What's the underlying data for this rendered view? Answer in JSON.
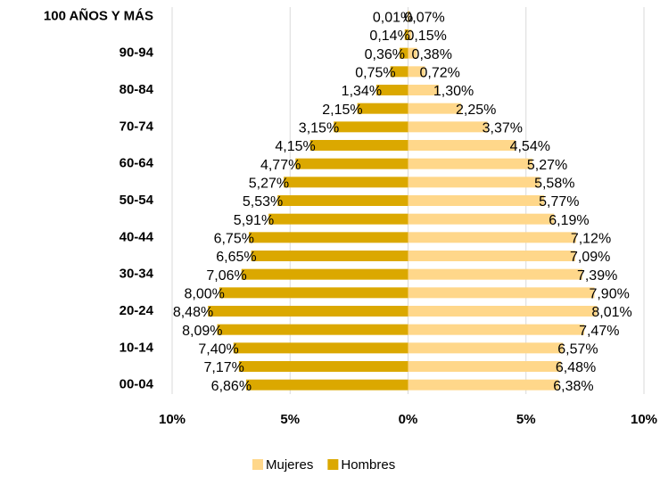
{
  "chart_data": {
    "type": "pyramid",
    "categories": [
      "00-04",
      null,
      "10-14",
      null,
      "20-24",
      null,
      "30-34",
      null,
      "40-44",
      null,
      "50-54",
      null,
      "60-64",
      null,
      "70-74",
      null,
      "80-84",
      null,
      "90-94",
      null,
      "100 AÑOS Y MÁS"
    ],
    "series": [
      {
        "name": "Mujeres",
        "color": "#ffd78a",
        "values": [
          6.38,
          6.48,
          6.57,
          7.47,
          8.01,
          7.9,
          7.39,
          7.09,
          7.12,
          6.19,
          5.77,
          5.58,
          5.27,
          4.54,
          3.37,
          2.25,
          1.3,
          0.72,
          0.38,
          0.15,
          0.07
        ],
        "value_labels": [
          "6,38%",
          "6,48%",
          "6,57%",
          "7,47%",
          "8,01%",
          "7,90%",
          "7,39%",
          "7,09%",
          "7,12%",
          "6,19%",
          "5,77%",
          "5,58%",
          "5,27%",
          "4,54%",
          "3,37%",
          "2,25%",
          "1,30%",
          "0,72%",
          "0,38%",
          "0,15%",
          "0,07%"
        ]
      },
      {
        "name": "Hombres",
        "color": "#dba800",
        "values": [
          -6.86,
          -7.17,
          -7.4,
          -8.09,
          -8.48,
          -8.0,
          -7.06,
          -6.65,
          -6.75,
          -5.91,
          -5.53,
          -5.27,
          -4.77,
          -4.15,
          -3.15,
          -2.15,
          -1.34,
          -0.75,
          -0.36,
          -0.14,
          -0.01
        ],
        "value_labels": [
          "6,86%",
          "7,17%",
          "7,40%",
          "8,09%",
          "8,48%",
          "8,00%",
          "7,06%",
          "6,65%",
          "6,75%",
          "5,91%",
          "5,53%",
          "5,27%",
          "4,77%",
          "4,15%",
          "3,15%",
          "2,15%",
          "1,34%",
          "0,75%",
          "0,36%",
          "0,14%",
          "0,01%"
        ]
      }
    ],
    "xlim": [
      -10,
      10
    ],
    "xticks": [
      {
        "value": -10,
        "label": "10%"
      },
      {
        "value": -5,
        "label": "5%"
      },
      {
        "value": 0,
        "label": "0%"
      },
      {
        "value": 5,
        "label": "5%"
      },
      {
        "value": 10,
        "label": "10%"
      }
    ],
    "grid": true,
    "legend": "bottom"
  }
}
